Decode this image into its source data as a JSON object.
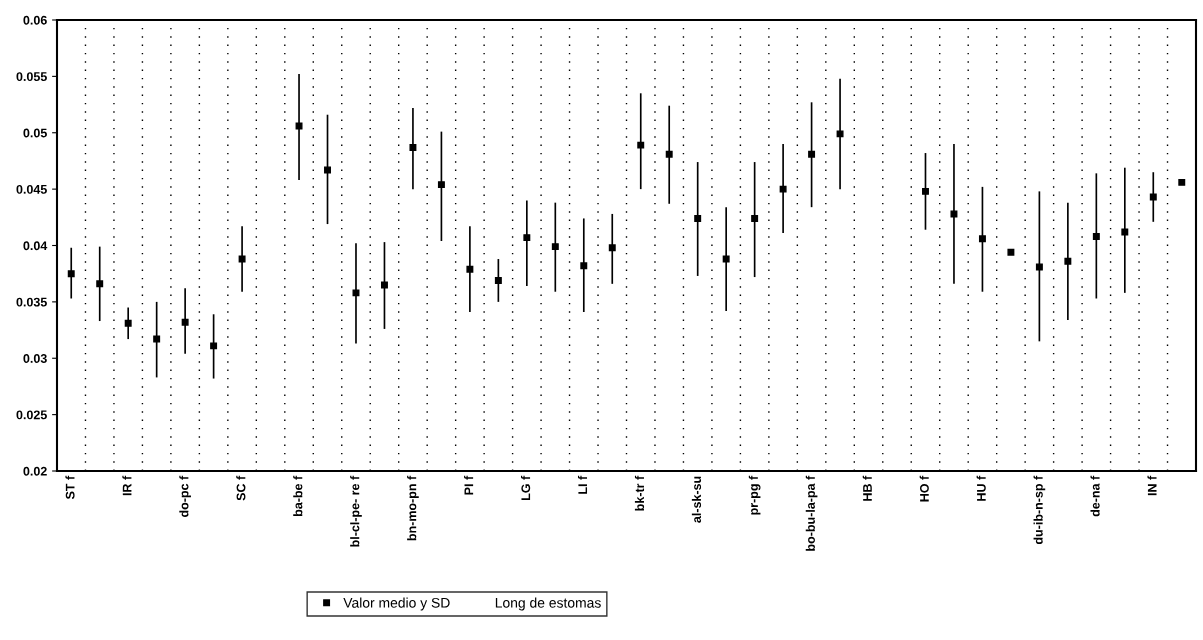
{
  "chart_data": {
    "type": "scatter",
    "categories": [
      "ST f",
      null,
      "IR f",
      null,
      "do-pc f",
      null,
      "SC f",
      null,
      "ba-be f",
      null,
      "bl-cl-pe- re f",
      null,
      "bn-mo-pn f",
      null,
      "PI f",
      null,
      "LG f",
      null,
      "LI f",
      null,
      "bk-tr f",
      null,
      "al-sk-su",
      null,
      "pr-pg f",
      null,
      "bo-bu-la-pa f",
      null,
      "HB f",
      null,
      "HO f",
      null,
      "HU f",
      null,
      "du-ib-n-sp f",
      null,
      "de-na f",
      null,
      "IN f",
      null
    ],
    "series": [
      {
        "name": "Valor medio y SD",
        "color": "#000000",
        "values": [
          0.0375,
          0.0366,
          0.0331,
          0.0317,
          0.0332,
          0.0311,
          0.0388,
          null,
          0.0506,
          0.0467,
          0.0358,
          0.0365,
          0.0487,
          0.0454,
          0.0379,
          0.0369,
          0.0407,
          0.0399,
          0.0382,
          0.0398,
          0.0489,
          0.0481,
          0.0424,
          0.0388,
          0.0424,
          0.045,
          0.0481,
          0.0499,
          null,
          null,
          0.0448,
          0.0428,
          0.0406,
          0.0394,
          0.0381,
          0.0386,
          0.0408,
          0.0412,
          0.0443,
          0.0456
        ],
        "errors": [
          [
            0.0353,
            0.0398
          ],
          [
            0.0333,
            0.0399
          ],
          [
            0.0317,
            0.0345
          ],
          [
            0.0283,
            0.035
          ],
          [
            0.0304,
            0.0362
          ],
          [
            0.0282,
            0.0339
          ],
          [
            0.0359,
            0.0417
          ],
          null,
          [
            0.0458,
            0.0552
          ],
          [
            0.0419,
            0.0516
          ],
          [
            0.0313,
            0.0402
          ],
          [
            0.0326,
            0.0403
          ],
          [
            0.045,
            0.0522
          ],
          [
            0.0404,
            0.0501
          ],
          [
            0.0341,
            0.0417
          ],
          [
            0.035,
            0.0388
          ],
          [
            0.0364,
            0.044
          ],
          [
            0.0359,
            0.0438
          ],
          [
            0.0341,
            0.0424
          ],
          [
            0.0366,
            0.0428
          ],
          [
            0.045,
            0.0535
          ],
          [
            0.0437,
            0.0524
          ],
          [
            0.0373,
            0.0474
          ],
          [
            0.0342,
            0.0434
          ],
          [
            0.0372,
            0.0474
          ],
          [
            0.0411,
            0.049
          ],
          [
            0.0434,
            0.0527
          ],
          [
            0.045,
            0.0548
          ],
          null,
          null,
          [
            0.0414,
            0.0482
          ],
          [
            0.0366,
            0.049
          ],
          [
            0.0359,
            0.0452
          ],
          null,
          [
            0.0315,
            0.0448
          ],
          [
            0.0334,
            0.0438
          ],
          [
            0.0353,
            0.0464
          ],
          [
            0.0358,
            0.0469
          ],
          [
            0.0421,
            0.0465
          ],
          null
        ]
      },
      {
        "name": "Long de estomas",
        "values": [
          null,
          null,
          null,
          null,
          null,
          null,
          null,
          null,
          null,
          null,
          null,
          null,
          null,
          null,
          null,
          null,
          null,
          null,
          null,
          null,
          null,
          null,
          null,
          null,
          null,
          null,
          null,
          null,
          null,
          null,
          null,
          null,
          null,
          null,
          null,
          null,
          null,
          null,
          null,
          null
        ]
      }
    ],
    "ylim": [
      0.02,
      0.06
    ],
    "yticks": [
      0.02,
      0.025,
      0.03,
      0.035,
      0.04,
      0.045,
      0.05,
      0.055,
      0.06
    ],
    "grid": "x",
    "legend": "bottom",
    "marker": "square"
  }
}
